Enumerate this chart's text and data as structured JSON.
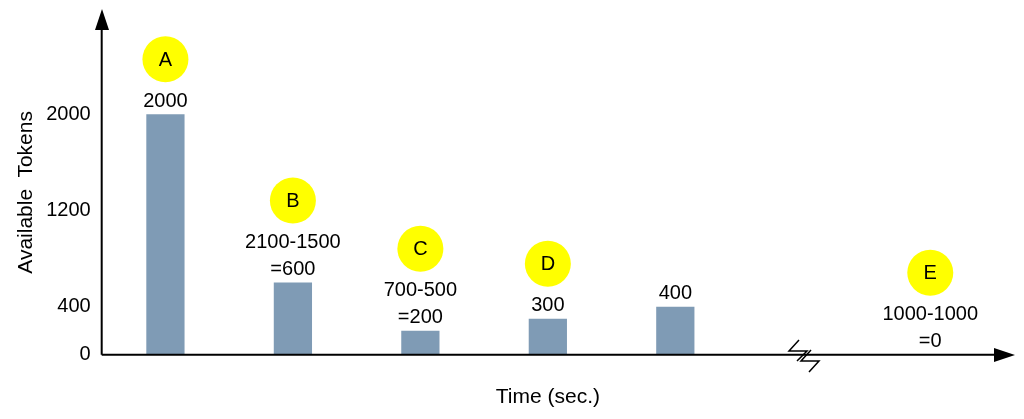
{
  "chart_data": {
    "type": "bar",
    "xlabel": "Time (sec.)",
    "ylabel": "Available  Tokens",
    "categories": [
      null,
      null,
      null,
      null,
      null,
      null,
      null
    ],
    "values": [
      2000,
      600,
      200,
      300,
      400,
      null,
      0
    ],
    "color": "#7f9bb5",
    "value_labels": [
      "2000",
      "2100-1500\n=600",
      "700-500\n=200",
      "300",
      "400",
      null,
      "1000-1000\n=0"
    ],
    "annotations": [
      "A",
      "B",
      "C",
      "D",
      "E"
    ],
    "ylim": [
      0,
      2700
    ],
    "yticks": [
      0,
      400,
      1200,
      2000
    ],
    "grid": false,
    "legend": false
  }
}
